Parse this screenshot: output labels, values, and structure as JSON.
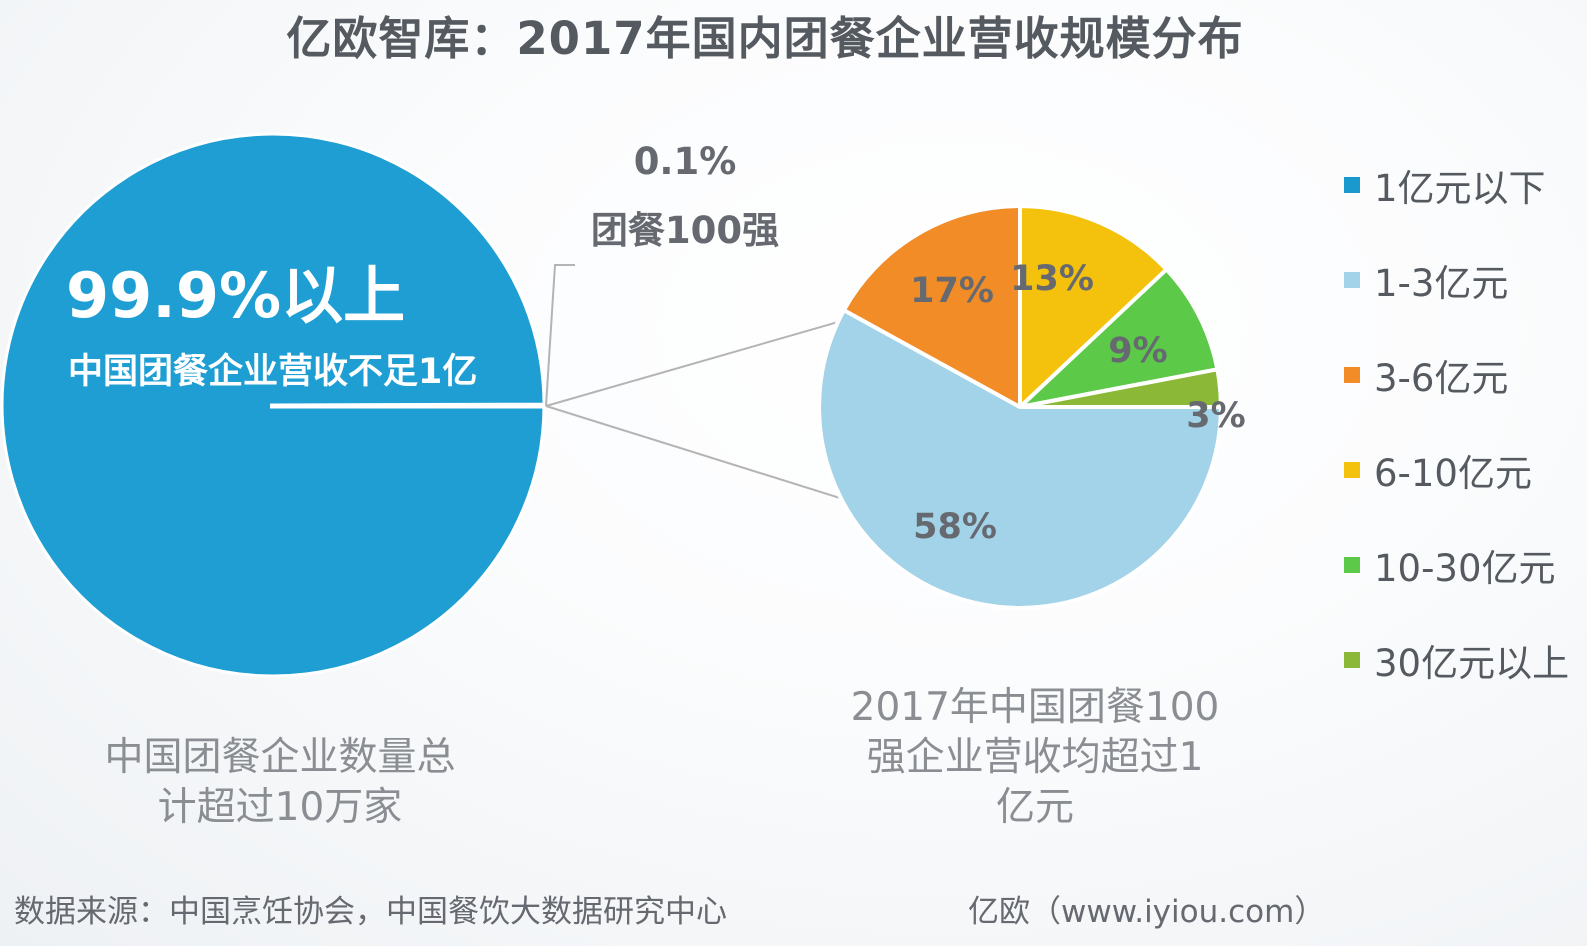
{
  "title": "亿欧智库：2017年国内团餐企业营收规模分布",
  "colors": {
    "big_pie": "#1e9ed3",
    "line_gray": "#b4b4b4"
  },
  "chart_data": [
    {
      "type": "pie",
      "label": "中国团餐企业数量总计超过10万家",
      "slices": [
        {
          "name": "中国团餐企业营收不足1亿",
          "value": 99.9,
          "label": "99.9%以上",
          "color": "#1e9ed3"
        },
        {
          "name": "团餐100强",
          "value": 0.1,
          "label": "0.1%",
          "color": "#9e9e9e"
        }
      ]
    },
    {
      "type": "pie",
      "label": "2017年中国团餐100强企业营收均超过1亿元",
      "slices": [
        {
          "name": "1亿元以下",
          "value": 0,
          "label": "",
          "color": "#1a99cf"
        },
        {
          "name": "1-3亿元",
          "value": 58,
          "label": "58%",
          "color": "#a2d3e8"
        },
        {
          "name": "3-6亿元",
          "value": 17,
          "label": "17%",
          "color": "#f28c27"
        },
        {
          "name": "6-10亿元",
          "value": 13,
          "label": "13%",
          "color": "#f4c20d"
        },
        {
          "name": "10-30亿元",
          "value": 9,
          "label": "9%",
          "color": "#5cc948"
        },
        {
          "name": "30亿元以上",
          "value": 3,
          "label": "3%",
          "color": "#8bb937"
        }
      ]
    }
  ],
  "big_pie_text": {
    "pct": "99.9%以上",
    "desc": "中国团餐企业营收不足1亿"
  },
  "callout": {
    "pct": "0.1%",
    "name": "团餐100强"
  },
  "captions": {
    "left_line1": "中国团餐企业数量总",
    "left_line2": "计超过10万家",
    "right_line1": "2017年中国团餐100",
    "right_line2": "强企业营收均超过1",
    "right_line3": "亿元"
  },
  "legend": [
    {
      "label": "1亿元以下",
      "color": "#1a99cf"
    },
    {
      "label": "1-3亿元",
      "color": "#a2d3e8"
    },
    {
      "label": "3-6亿元",
      "color": "#f28c27"
    },
    {
      "label": "6-10亿元",
      "color": "#f4c20d"
    },
    {
      "label": "10-30亿元",
      "color": "#5cc948"
    },
    {
      "label": "30亿元以上",
      "color": "#8bb937"
    }
  ],
  "footer": {
    "source": "数据来源：中国烹饪协会，中国餐饮大数据研究中心",
    "brand": "亿欧（www.iyiou.com）"
  }
}
